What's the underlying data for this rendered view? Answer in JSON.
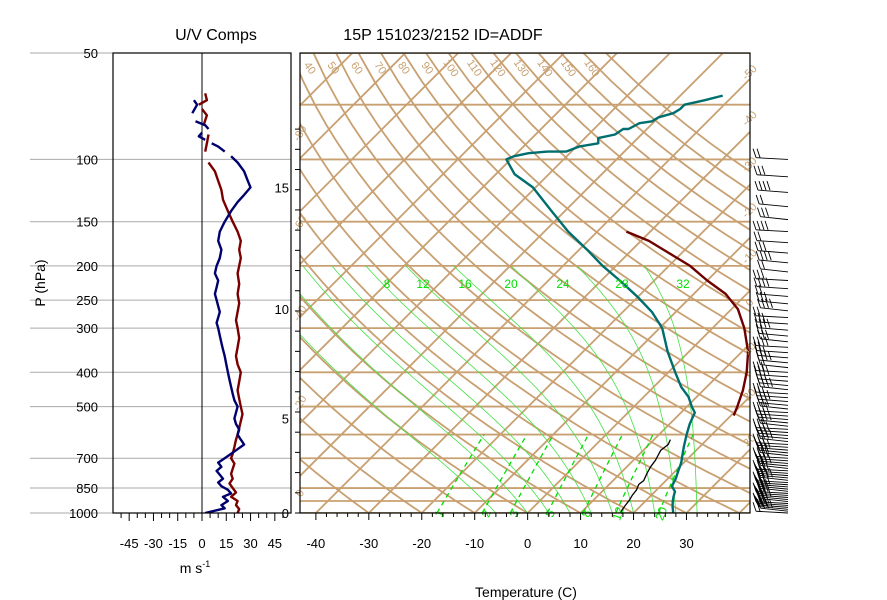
{
  "chart_data": [
    {
      "type": "line",
      "title": "U/V Comps",
      "xlabel": "m s",
      "xlabel_superscript": "-1",
      "ylabel": "P (hPa)",
      "y_scale": "log",
      "ylim": [
        1000,
        50
      ],
      "xlim": [
        -55,
        55
      ],
      "x_tick_labels": [
        "-45",
        "-30",
        "-15",
        "0",
        "15",
        "30",
        "45"
      ],
      "x_ticks": [
        -45,
        -30,
        -15,
        0,
        15,
        30,
        45
      ],
      "y_tick_labels": [
        "50",
        "100",
        "150",
        "200",
        "250",
        "300",
        "400",
        "500",
        "700",
        "850",
        "1000"
      ],
      "y_ticks": [
        50,
        100,
        150,
        200,
        250,
        300,
        400,
        500,
        700,
        850,
        1000
      ],
      "grid": "horizontal at pressure ticks",
      "colors": {
        "u": "#7a0000",
        "v": "#00006e",
        "grid": "#aaaaaa"
      },
      "series": [
        {
          "id": "u",
          "style": "solid-with-gaps",
          "points": [
            [
              22,
              1000
            ],
            [
              23,
              975
            ],
            [
              21,
              950
            ],
            [
              22,
              925
            ],
            [
              18,
              900
            ],
            [
              21,
              875
            ],
            [
              19,
              850
            ],
            [
              17,
              825
            ],
            [
              19,
              800
            ],
            [
              18,
              775
            ],
            [
              19,
              750
            ],
            [
              20,
              725
            ],
            [
              18,
              700
            ],
            [
              19,
              680
            ],
            [
              20,
              650
            ],
            [
              21,
              620
            ],
            [
              22,
              600
            ],
            [
              23,
              575
            ],
            [
              24,
              550
            ],
            [
              25,
              525
            ],
            [
              24,
              500
            ],
            [
              23,
              475
            ],
            [
              22,
              450
            ],
            [
              23,
              425
            ],
            [
              24,
              400
            ],
            [
              22,
              380
            ],
            [
              21,
              360
            ],
            [
              22,
              340
            ],
            [
              23,
              320
            ],
            [
              22,
              300
            ],
            [
              21,
              285
            ],
            [
              22,
              270
            ],
            [
              23,
              255
            ],
            [
              22,
              240
            ],
            [
              23,
              225
            ],
            [
              22,
              210
            ],
            [
              23,
              200
            ],
            [
              24,
              190
            ],
            [
              23,
              180
            ],
            [
              24,
              170
            ],
            [
              22,
              160
            ],
            [
              19,
              150
            ],
            [
              16,
              140
            ],
            [
              13,
              130
            ],
            [
              12,
              122
            ],
            [
              10,
              115
            ],
            [
              8,
              108
            ],
            [
              4,
              102
            ],
            [
              2,
              95
            ],
            [
              3,
              90
            ],
            [
              4,
              85
            ],
            [
              1,
              80
            ],
            [
              3,
              75
            ],
            [
              0,
              72
            ],
            [
              -2,
              70
            ],
            [
              3,
              68
            ],
            [
              2,
              65
            ]
          ]
        },
        {
          "id": "v",
          "style": "solid-with-gaps",
          "points": [
            [
              2,
              1000
            ],
            [
              8,
              985
            ],
            [
              14,
              970
            ],
            [
              12,
              950
            ],
            [
              16,
              925
            ],
            [
              13,
              900
            ],
            [
              18,
              880
            ],
            [
              16,
              860
            ],
            [
              12,
              840
            ],
            [
              10,
              820
            ],
            [
              13,
              800
            ],
            [
              11,
              780
            ],
            [
              9,
              760
            ],
            [
              12,
              740
            ],
            [
              10,
              720
            ],
            [
              14,
              700
            ],
            [
              18,
              680
            ],
            [
              22,
              660
            ],
            [
              26,
              640
            ],
            [
              24,
              620
            ],
            [
              22,
              600
            ],
            [
              23,
              580
            ],
            [
              21,
              560
            ],
            [
              20,
              540
            ],
            [
              21,
              520
            ],
            [
              22,
              500
            ],
            [
              20,
              480
            ],
            [
              19,
              460
            ],
            [
              18,
              440
            ],
            [
              17,
              420
            ],
            [
              16,
              400
            ],
            [
              15,
              380
            ],
            [
              14,
              360
            ],
            [
              13,
              345
            ],
            [
              12,
              330
            ],
            [
              11,
              315
            ],
            [
              10,
              300
            ],
            [
              9,
              290
            ],
            [
              10,
              280
            ],
            [
              11,
              270
            ],
            [
              10,
              260
            ],
            [
              9,
              250
            ],
            [
              8,
              240
            ],
            [
              9,
              230
            ],
            [
              10,
              220
            ],
            [
              8,
              210
            ],
            [
              9,
              200
            ],
            [
              11,
              190
            ],
            [
              12,
              180
            ],
            [
              10,
              170
            ],
            [
              11,
              160
            ],
            [
              14,
              150
            ],
            [
              18,
              140
            ],
            [
              22,
              132
            ],
            [
              26,
              126
            ],
            [
              30,
              120
            ],
            [
              28,
              114
            ],
            [
              26,
              108
            ],
            [
              22,
              102
            ],
            [
              18,
              98
            ],
            [
              14,
              95
            ],
            [
              10,
              92
            ],
            [
              6,
              90
            ],
            [
              2,
              88
            ],
            [
              -2,
              86
            ],
            [
              0,
              84
            ],
            [
              4,
              82
            ],
            [
              2,
              80
            ],
            [
              -4,
              78
            ],
            [
              -6,
              74
            ],
            [
              -3,
              70
            ],
            [
              -5,
              68
            ]
          ]
        }
      ]
    },
    {
      "type": "line",
      "title": "15P 151023/2152 ID=ADDF",
      "xlabel": "Temperature (C)",
      "y_scale": "log",
      "ylim": [
        1000,
        50
      ],
      "xlim": [
        -43,
        42
      ],
      "x_tick_labels": [
        "-40",
        "-30",
        "-20",
        "-10",
        "0",
        "10",
        "20",
        "30"
      ],
      "x_ticks": [
        -40,
        -30,
        -20,
        -10,
        0,
        10,
        20,
        30
      ],
      "height_axis_labels": [
        "0",
        "5",
        "10",
        "15"
      ],
      "height_axis_km": [
        0,
        5,
        10,
        15
      ],
      "height_axis_pressures": [
        1000,
        540,
        265,
        120
      ],
      "skew": 1,
      "background": {
        "isobars": [
          1000,
          925,
          850,
          700,
          600,
          500,
          400,
          300,
          250,
          200,
          150,
          100,
          70,
          50
        ],
        "isotherms": [
          -120,
          -110,
          -100,
          -90,
          -80,
          -70,
          -60,
          -50,
          -40,
          -30,
          -20,
          -10,
          0,
          10,
          20,
          30,
          40
        ],
        "dry_adiabats_theta_c": [
          -30,
          -20,
          -10,
          0,
          10,
          20,
          30,
          40,
          50,
          60,
          70,
          80,
          90,
          100,
          110,
          120,
          130,
          140,
          150,
          160,
          170,
          180,
          190,
          200
        ],
        "dry_adiabat_top_labels": [
          "40",
          "50",
          "60",
          "70",
          "80",
          "90",
          "100",
          "110",
          "120",
          "130",
          "140",
          "150",
          "160"
        ],
        "right_edge_isotherm_labels": [
          "-50",
          "-40",
          "-30",
          "-20",
          "-10",
          "0",
          "10",
          "20",
          "30"
        ],
        "left_edge_labels": [
          "-80",
          "-60",
          "-40",
          "-20",
          "0"
        ],
        "mixing_ratio_labels": [
          "8",
          "12",
          "16",
          "20",
          "24",
          "28",
          "32"
        ],
        "mixing_ratio_bottom_labels": [
          "1",
          "2",
          "3",
          "5",
          "8",
          "12",
          "20"
        ],
        "colors": {
          "adiabats_isotherms_isobars": "#c8a071",
          "moist_adiabats": "#44e044",
          "mixing_ratio": "#00dd00"
        }
      },
      "series": [
        {
          "id": "temperature",
          "color": "#006e6e",
          "points": [
            [
              27.5,
              1000
            ],
            [
              26.2,
              960
            ],
            [
              25.3,
              930
            ],
            [
              24.5,
              900
            ],
            [
              23.8,
              870
            ],
            [
              22.2,
              840
            ],
            [
              21.5,
              800
            ],
            [
              20.5,
              760
            ],
            [
              19.5,
              720
            ],
            [
              18.8,
              700
            ],
            [
              17.0,
              650
            ],
            [
              15.2,
              600
            ],
            [
              13.8,
              560
            ],
            [
              12.6,
              520
            ],
            [
              10.9,
              500
            ],
            [
              8.5,
              470
            ],
            [
              5.2,
              440
            ],
            [
              1.3,
              400
            ],
            [
              -4.0,
              350
            ],
            [
              -9.5,
              300
            ],
            [
              -14.5,
              270
            ],
            [
              -20.0,
              245
            ],
            [
              -26.5,
              220
            ],
            [
              -32.5,
              200
            ],
            [
              -38.5,
              180
            ],
            [
              -45.5,
              160
            ],
            [
              -52.5,
              140
            ],
            [
              -60.5,
              120
            ],
            [
              -66.5,
              110
            ],
            [
              -70.8,
              100
            ],
            [
              -70.0,
              98
            ],
            [
              -67.8,
              96
            ],
            [
              -64.5,
              95
            ],
            [
              -61.0,
              95
            ],
            [
              -59.5,
              92
            ],
            [
              -56.5,
              90
            ],
            [
              -57.5,
              87
            ],
            [
              -55.0,
              85
            ],
            [
              -54.5,
              82
            ],
            [
              -53.5,
              82
            ],
            [
              -52.5,
              79
            ],
            [
              -50.5,
              78
            ],
            [
              -50.0,
              76
            ],
            [
              -48.0,
              74
            ],
            [
              -47.5,
              72
            ],
            [
              -47.5,
              70
            ],
            [
              -44.5,
              68
            ],
            [
              -42.0,
              66
            ]
          ]
        },
        {
          "id": "dewpoint",
          "color": "#000000",
          "points": [
            [
              17.5,
              1000
            ],
            [
              17.2,
              975
            ],
            [
              17.0,
              950
            ],
            [
              16.8,
              920
            ],
            [
              16.4,
              890
            ],
            [
              16.2,
              860
            ],
            [
              15.6,
              830
            ],
            [
              15.8,
              810
            ],
            [
              15.4,
              790
            ],
            [
              15.0,
              770
            ],
            [
              14.5,
              740
            ],
            [
              14.2,
              710
            ],
            [
              13.8,
              690
            ],
            [
              13.3,
              665
            ],
            [
              13.6,
              640
            ],
            [
              13.1,
              620
            ]
          ]
        },
        {
          "id": "parcel",
          "color": "#6e0000",
          "points": [
            [
              20.5,
              530
            ],
            [
              19.5,
              500
            ],
            [
              17.5,
              450
            ],
            [
              14.8,
              400
            ],
            [
              11.2,
              350
            ],
            [
              6.0,
              300
            ],
            [
              1.2,
              265
            ],
            [
              -4.0,
              240
            ],
            [
              -10.0,
              220
            ],
            [
              -16.0,
              200
            ],
            [
              -22.0,
              185
            ],
            [
              -28.5,
              170
            ],
            [
              -34.5,
              160
            ]
          ]
        }
      ]
    }
  ]
}
